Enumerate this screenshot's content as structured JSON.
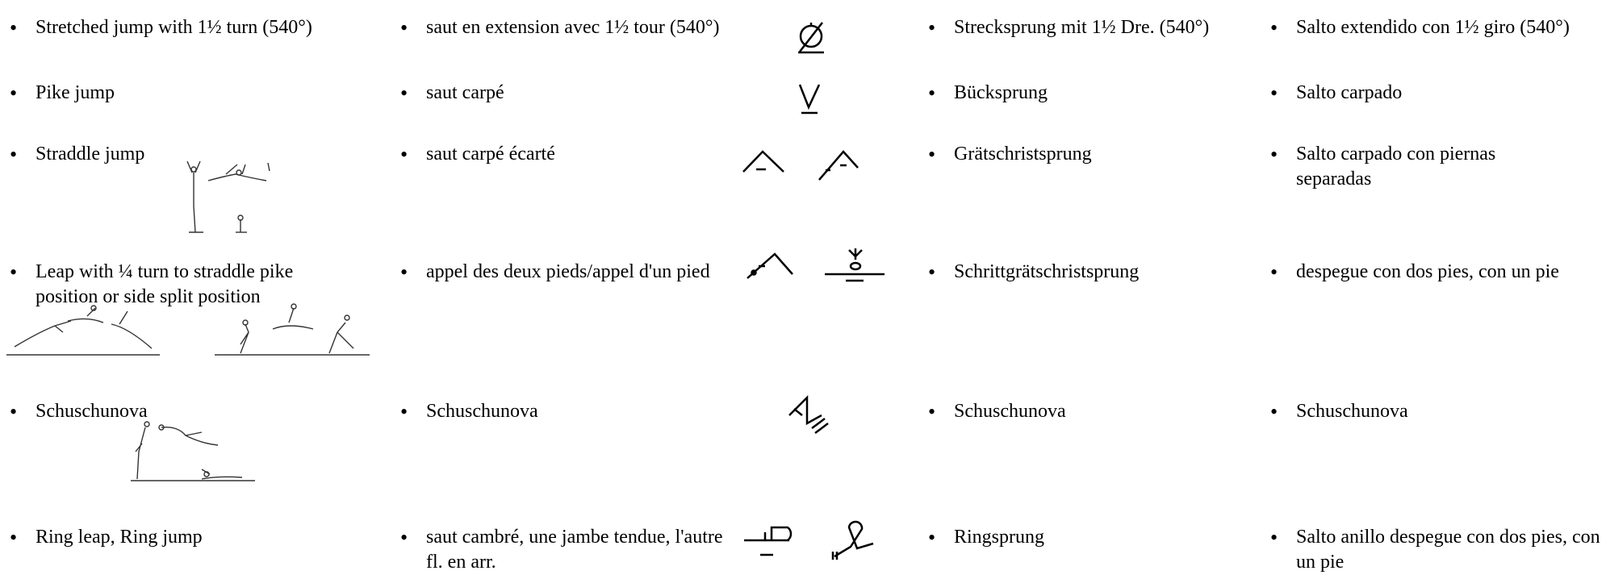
{
  "rows": [
    {
      "en": "Stretched jump with 1½ turn (540°)",
      "fr": "saut en extension avec 1½ tour (540°)",
      "de": "Strecksprung mit 1½ Dre. (540°)",
      "es": "Salto extendido con 1½ giro (540°)"
    },
    {
      "en": "Pike jump",
      "fr": "saut carpé",
      "de": "Bücksprung",
      "es": "Salto carpado"
    },
    {
      "en": "Straddle jump",
      "fr": "saut carpé écarté",
      "de": "Grätschristsprung",
      "es": "Salto carpado con piernas separadas"
    },
    {
      "en": "Leap with ¼ turn to straddle pike position or side split position",
      "fr": "appel des deux pieds/appel d'un pied",
      "de": "Schrittgrätschristsprung",
      "es": "despegue con dos pies, con un pie"
    },
    {
      "en": "Schuschunova",
      "fr": "Schuschunova",
      "de": "Schuschunova",
      "es": "Schuschunova"
    },
    {
      "en": "Ring leap, Ring jump",
      "fr": "saut cambré, une jambe tendue, l'autre fl. en arr.",
      "de": "Ringsprung",
      "es": "Salto anillo despegue con dos pies, con un pie"
    }
  ]
}
